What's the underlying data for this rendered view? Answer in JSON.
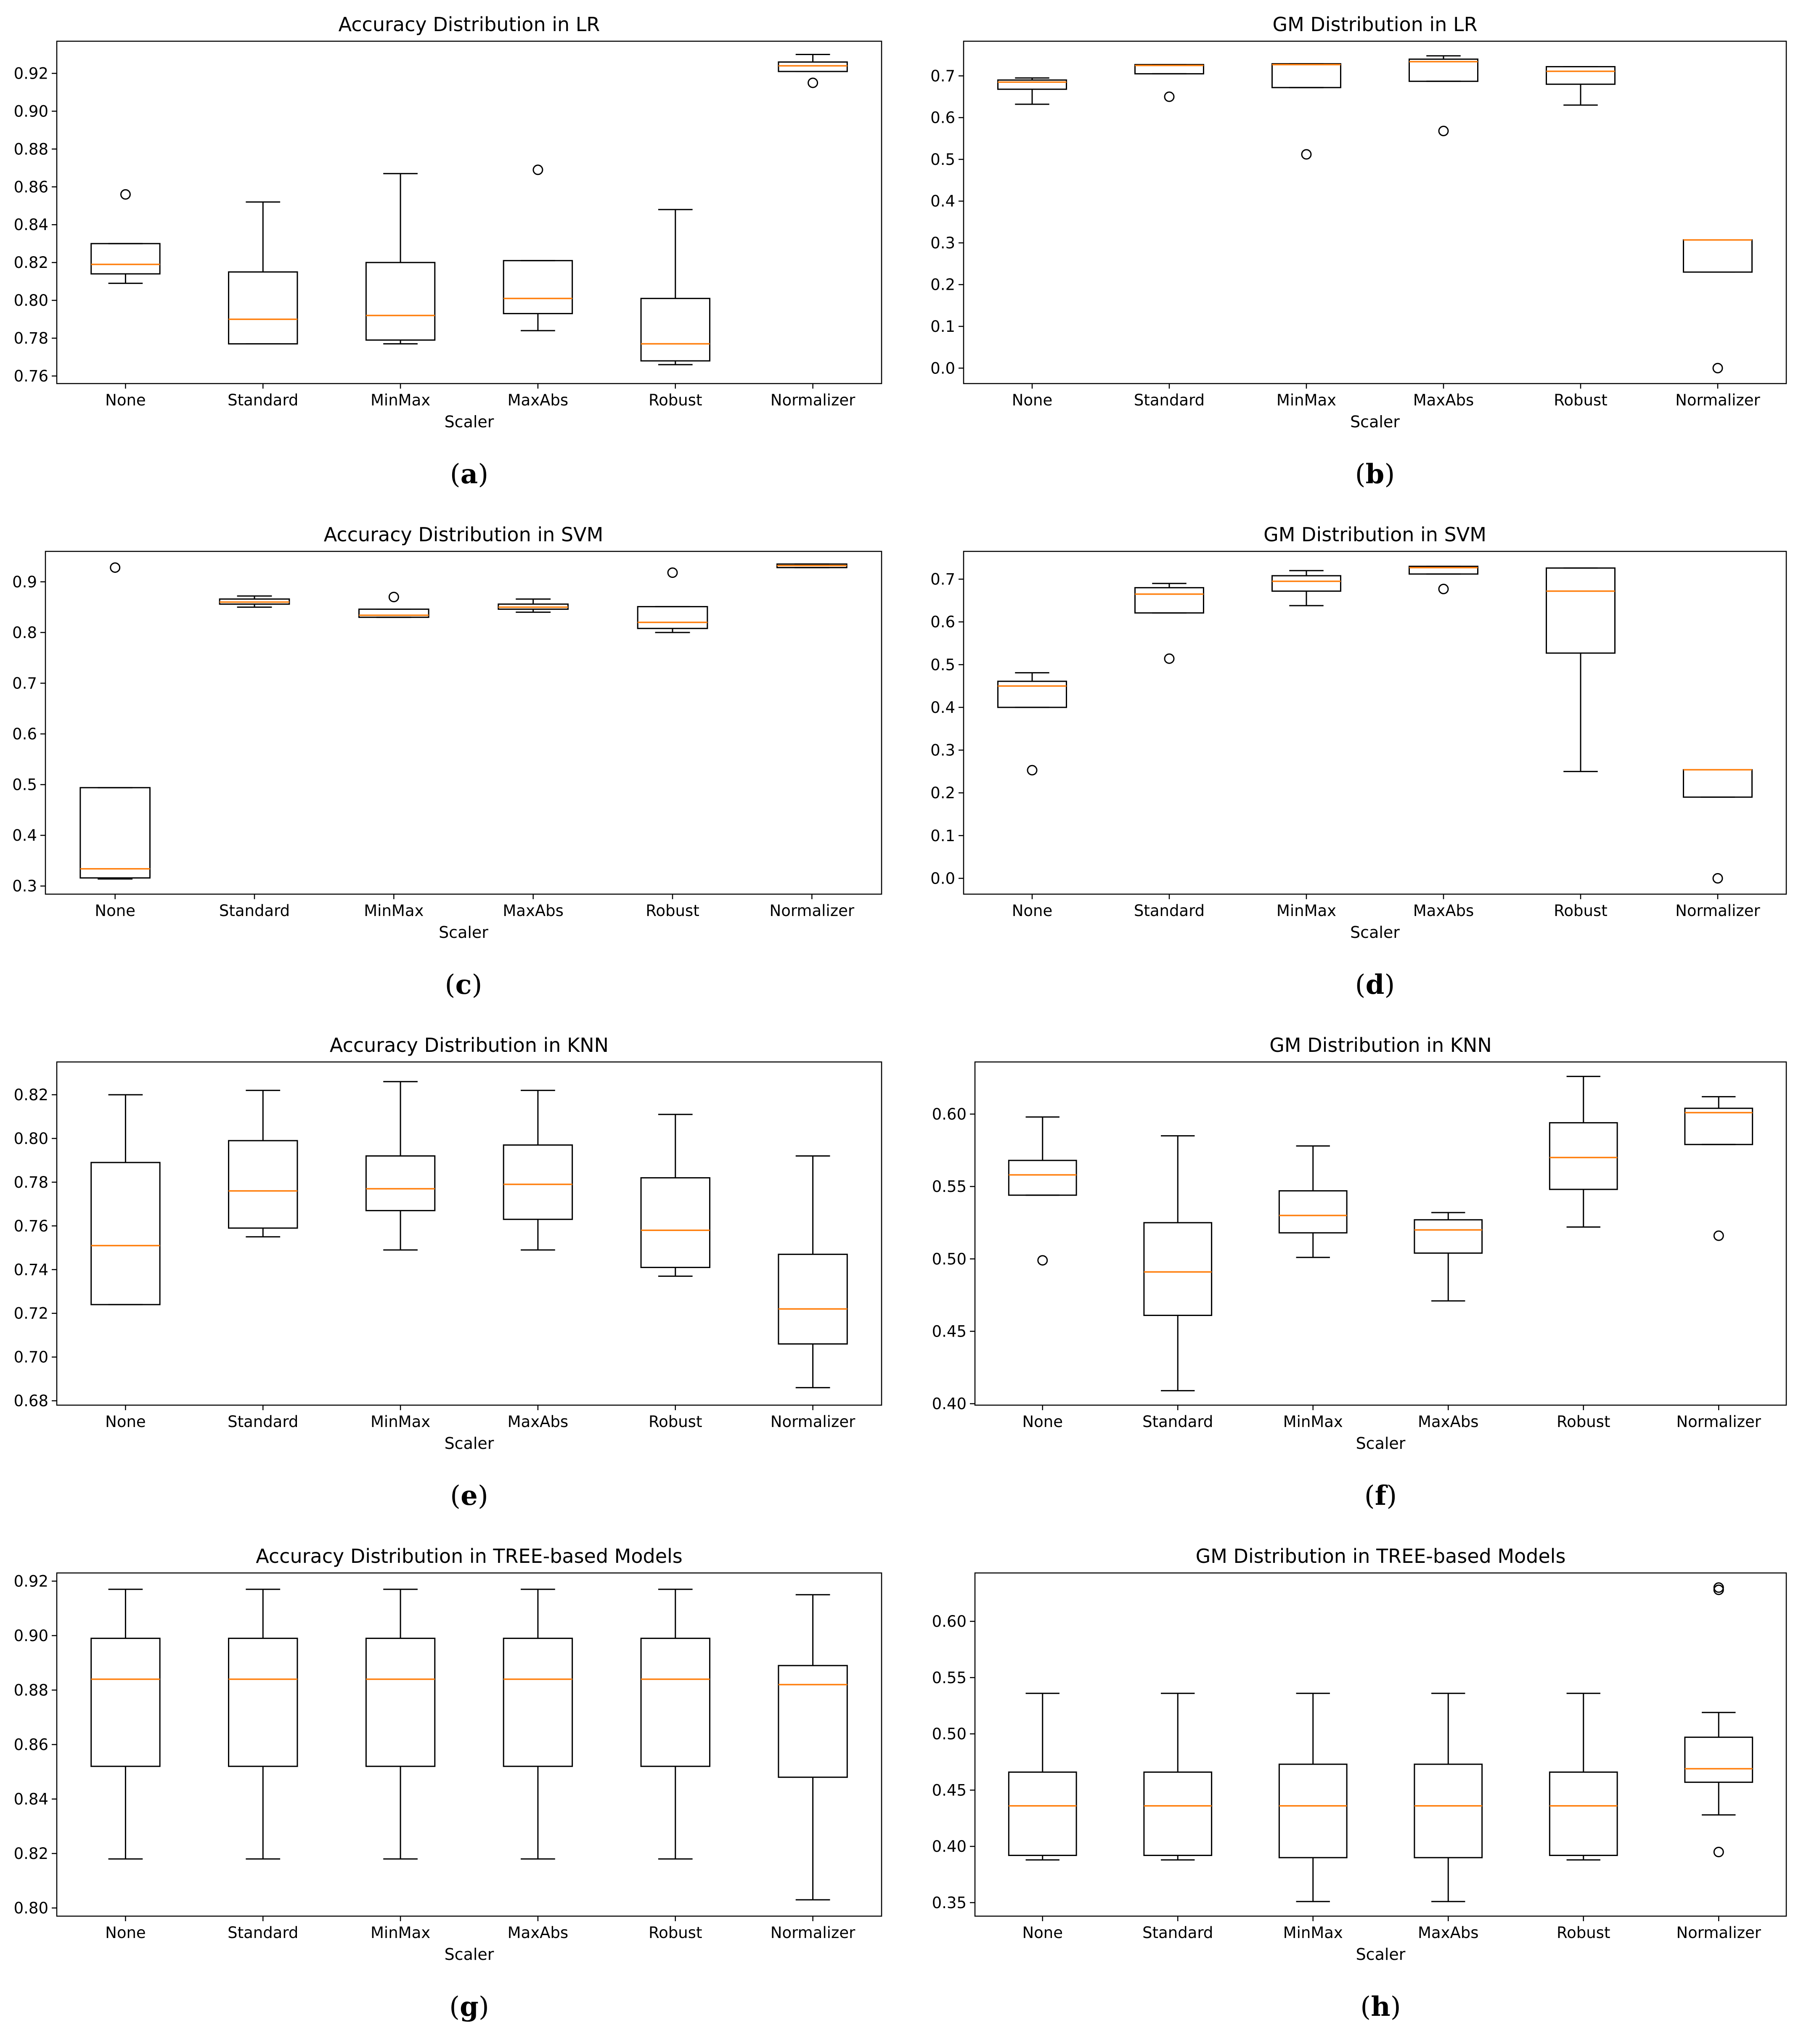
{
  "colors": {
    "box": "#000000",
    "median": "#ff7f0e",
    "background": "#ffffff"
  },
  "chart_data": [
    {
      "id": "a",
      "type": "boxplot",
      "caption": "a",
      "title": "Accuracy Distribution in LR",
      "xlabel": "Scaler",
      "ylabel": "",
      "ylim": [
        0.756,
        0.937
      ],
      "yticks": [
        0.76,
        0.78,
        0.8,
        0.82,
        0.84,
        0.86,
        0.88,
        0.9,
        0.92
      ],
      "ytick_labels": [
        "0.76",
        "0.78",
        "0.80",
        "0.82",
        "0.84",
        "0.86",
        "0.88",
        "0.90",
        "0.92"
      ],
      "categories": [
        "None",
        "Standard",
        "MinMax",
        "MaxAbs",
        "Robust",
        "Normalizer"
      ],
      "boxes": [
        {
          "whislo": 0.809,
          "q1": 0.814,
          "med": 0.819,
          "q3": 0.83,
          "whishi": 0.83,
          "fliers": [
            0.856
          ]
        },
        {
          "whislo": 0.777,
          "q1": 0.777,
          "med": 0.79,
          "q3": 0.815,
          "whishi": 0.852,
          "fliers": []
        },
        {
          "whislo": 0.777,
          "q1": 0.779,
          "med": 0.792,
          "q3": 0.82,
          "whishi": 0.867,
          "fliers": []
        },
        {
          "whislo": 0.784,
          "q1": 0.793,
          "med": 0.801,
          "q3": 0.821,
          "whishi": 0.821,
          "fliers": [
            0.869
          ]
        },
        {
          "whislo": 0.766,
          "q1": 0.768,
          "med": 0.777,
          "q3": 0.801,
          "whishi": 0.848,
          "fliers": []
        },
        {
          "whislo": 0.921,
          "q1": 0.921,
          "med": 0.924,
          "q3": 0.926,
          "whishi": 0.93,
          "fliers": [
            0.915
          ]
        }
      ]
    },
    {
      "id": "b",
      "type": "boxplot",
      "caption": "b",
      "title": "GM Distribution in LR",
      "xlabel": "Scaler",
      "ylabel": "",
      "ylim": [
        -0.037,
        0.783
      ],
      "yticks": [
        0.0,
        0.1,
        0.2,
        0.3,
        0.4,
        0.5,
        0.6,
        0.7
      ],
      "ytick_labels": [
        "0.0",
        "0.1",
        "0.2",
        "0.3",
        "0.4",
        "0.5",
        "0.6",
        "0.7"
      ],
      "categories": [
        "None",
        "Standard",
        "MinMax",
        "MaxAbs",
        "Robust",
        "Normalizer"
      ],
      "boxes": [
        {
          "whislo": 0.632,
          "q1": 0.668,
          "med": 0.685,
          "q3": 0.69,
          "whishi": 0.695,
          "fliers": []
        },
        {
          "whislo": 0.705,
          "q1": 0.705,
          "med": 0.725,
          "q3": 0.727,
          "whishi": 0.727,
          "fliers": [
            0.65
          ]
        },
        {
          "whislo": 0.672,
          "q1": 0.672,
          "med": 0.727,
          "q3": 0.729,
          "whishi": 0.729,
          "fliers": [
            0.512
          ]
        },
        {
          "whislo": 0.687,
          "q1": 0.687,
          "med": 0.734,
          "q3": 0.74,
          "whishi": 0.748,
          "fliers": [
            0.568
          ]
        },
        {
          "whislo": 0.63,
          "q1": 0.68,
          "med": 0.711,
          "q3": 0.722,
          "whishi": 0.722,
          "fliers": []
        },
        {
          "whislo": 0.23,
          "q1": 0.23,
          "med": 0.307,
          "q3": 0.307,
          "whishi": 0.307,
          "fliers": [
            0.0
          ]
        }
      ]
    },
    {
      "id": "c",
      "type": "boxplot",
      "caption": "c",
      "title": "Accuracy Distribution in SVM",
      "xlabel": "Scaler",
      "ylabel": "",
      "ylim": [
        0.284,
        0.96
      ],
      "yticks": [
        0.3,
        0.4,
        0.5,
        0.6,
        0.7,
        0.8,
        0.9
      ],
      "ytick_labels": [
        "0.3",
        "0.4",
        "0.5",
        "0.6",
        "0.7",
        "0.8",
        "0.9"
      ],
      "categories": [
        "None",
        "Standard",
        "MinMax",
        "MaxAbs",
        "Robust",
        "Normalizer"
      ],
      "boxes": [
        {
          "whislo": 0.314,
          "q1": 0.316,
          "med": 0.334,
          "q3": 0.494,
          "whishi": 0.494,
          "fliers": [
            0.928
          ]
        },
        {
          "whislo": 0.85,
          "q1": 0.856,
          "med": 0.86,
          "q3": 0.866,
          "whishi": 0.872,
          "fliers": []
        },
        {
          "whislo": 0.83,
          "q1": 0.83,
          "med": 0.834,
          "q3": 0.846,
          "whishi": 0.846,
          "fliers": [
            0.87
          ]
        },
        {
          "whislo": 0.84,
          "q1": 0.846,
          "med": 0.85,
          "q3": 0.856,
          "whishi": 0.866,
          "fliers": []
        },
        {
          "whislo": 0.8,
          "q1": 0.808,
          "med": 0.82,
          "q3": 0.851,
          "whishi": 0.851,
          "fliers": [
            0.918
          ]
        },
        {
          "whislo": 0.928,
          "q1": 0.928,
          "med": 0.932,
          "q3": 0.935,
          "whishi": 0.935,
          "fliers": []
        }
      ]
    },
    {
      "id": "d",
      "type": "boxplot",
      "caption": "d",
      "title": "GM Distribution in SVM",
      "xlabel": "Scaler",
      "ylabel": "",
      "ylim": [
        -0.037,
        0.765
      ],
      "yticks": [
        0.0,
        0.1,
        0.2,
        0.3,
        0.4,
        0.5,
        0.6,
        0.7
      ],
      "ytick_labels": [
        "0.0",
        "0.1",
        "0.2",
        "0.3",
        "0.4",
        "0.5",
        "0.6",
        "0.7"
      ],
      "categories": [
        "None",
        "Standard",
        "MinMax",
        "MaxAbs",
        "Robust",
        "Normalizer"
      ],
      "boxes": [
        {
          "whislo": 0.4,
          "q1": 0.4,
          "med": 0.45,
          "q3": 0.461,
          "whishi": 0.481,
          "fliers": [
            0.253
          ]
        },
        {
          "whislo": 0.621,
          "q1": 0.621,
          "med": 0.665,
          "q3": 0.68,
          "whishi": 0.69,
          "fliers": [
            0.514
          ]
        },
        {
          "whislo": 0.638,
          "q1": 0.672,
          "med": 0.695,
          "q3": 0.708,
          "whishi": 0.72,
          "fliers": []
        },
        {
          "whislo": 0.712,
          "q1": 0.712,
          "med": 0.727,
          "q3": 0.73,
          "whishi": 0.73,
          "fliers": [
            0.677
          ]
        },
        {
          "whislo": 0.25,
          "q1": 0.527,
          "med": 0.672,
          "q3": 0.726,
          "whishi": 0.726,
          "fliers": []
        },
        {
          "whislo": 0.19,
          "q1": 0.19,
          "med": 0.254,
          "q3": 0.254,
          "whishi": 0.254,
          "fliers": [
            0.0
          ]
        }
      ]
    },
    {
      "id": "e",
      "type": "boxplot",
      "caption": "e",
      "title": "Accuracy Distribution in KNN",
      "xlabel": "Scaler",
      "ylabel": "",
      "ylim": [
        0.678,
        0.835
      ],
      "yticks": [
        0.68,
        0.7,
        0.72,
        0.74,
        0.76,
        0.78,
        0.8,
        0.82
      ],
      "ytick_labels": [
        "0.68",
        "0.70",
        "0.72",
        "0.74",
        "0.76",
        "0.78",
        "0.80",
        "0.82"
      ],
      "categories": [
        "None",
        "Standard",
        "MinMax",
        "MaxAbs",
        "Robust",
        "Normalizer"
      ],
      "boxes": [
        {
          "whislo": 0.724,
          "q1": 0.724,
          "med": 0.751,
          "q3": 0.789,
          "whishi": 0.82,
          "fliers": []
        },
        {
          "whislo": 0.755,
          "q1": 0.759,
          "med": 0.776,
          "q3": 0.799,
          "whishi": 0.822,
          "fliers": []
        },
        {
          "whislo": 0.749,
          "q1": 0.767,
          "med": 0.777,
          "q3": 0.792,
          "whishi": 0.826,
          "fliers": []
        },
        {
          "whislo": 0.749,
          "q1": 0.763,
          "med": 0.779,
          "q3": 0.797,
          "whishi": 0.822,
          "fliers": []
        },
        {
          "whislo": 0.737,
          "q1": 0.741,
          "med": 0.758,
          "q3": 0.782,
          "whishi": 0.811,
          "fliers": []
        },
        {
          "whislo": 0.686,
          "q1": 0.706,
          "med": 0.722,
          "q3": 0.747,
          "whishi": 0.792,
          "fliers": []
        }
      ]
    },
    {
      "id": "f",
      "type": "boxplot",
      "caption": "f",
      "title": "GM Distribution in KNN",
      "xlabel": "Scaler",
      "ylabel": "",
      "ylim": [
        0.399,
        0.636
      ],
      "yticks": [
        0.4,
        0.45,
        0.5,
        0.55,
        0.6
      ],
      "ytick_labels": [
        "0.40",
        "0.45",
        "0.50",
        "0.55",
        "0.60"
      ],
      "categories": [
        "None",
        "Standard",
        "MinMax",
        "MaxAbs",
        "Robust",
        "Normalizer"
      ],
      "boxes": [
        {
          "whislo": 0.544,
          "q1": 0.544,
          "med": 0.558,
          "q3": 0.568,
          "whishi": 0.598,
          "fliers": [
            0.499
          ]
        },
        {
          "whislo": 0.409,
          "q1": 0.461,
          "med": 0.491,
          "q3": 0.525,
          "whishi": 0.585,
          "fliers": []
        },
        {
          "whislo": 0.501,
          "q1": 0.518,
          "med": 0.53,
          "q3": 0.547,
          "whishi": 0.578,
          "fliers": []
        },
        {
          "whislo": 0.471,
          "q1": 0.504,
          "med": 0.52,
          "q3": 0.527,
          "whishi": 0.532,
          "fliers": []
        },
        {
          "whislo": 0.522,
          "q1": 0.548,
          "med": 0.57,
          "q3": 0.594,
          "whishi": 0.626,
          "fliers": []
        },
        {
          "whislo": 0.579,
          "q1": 0.579,
          "med": 0.601,
          "q3": 0.604,
          "whishi": 0.612,
          "fliers": [
            0.516
          ]
        }
      ]
    },
    {
      "id": "g",
      "type": "boxplot",
      "caption": "g",
      "title": "Accuracy Distribution in TREE-based Models",
      "xlabel": "Scaler",
      "ylabel": "",
      "ylim": [
        0.797,
        0.923
      ],
      "yticks": [
        0.8,
        0.82,
        0.84,
        0.86,
        0.88,
        0.9,
        0.92
      ],
      "ytick_labels": [
        "0.80",
        "0.82",
        "0.84",
        "0.86",
        "0.88",
        "0.90",
        "0.92"
      ],
      "categories": [
        "None",
        "Standard",
        "MinMax",
        "MaxAbs",
        "Robust",
        "Normalizer"
      ],
      "boxes": [
        {
          "whislo": 0.818,
          "q1": 0.852,
          "med": 0.884,
          "q3": 0.899,
          "whishi": 0.917,
          "fliers": []
        },
        {
          "whislo": 0.818,
          "q1": 0.852,
          "med": 0.884,
          "q3": 0.899,
          "whishi": 0.917,
          "fliers": []
        },
        {
          "whislo": 0.818,
          "q1": 0.852,
          "med": 0.884,
          "q3": 0.899,
          "whishi": 0.917,
          "fliers": []
        },
        {
          "whislo": 0.818,
          "q1": 0.852,
          "med": 0.884,
          "q3": 0.899,
          "whishi": 0.917,
          "fliers": []
        },
        {
          "whislo": 0.818,
          "q1": 0.852,
          "med": 0.884,
          "q3": 0.899,
          "whishi": 0.917,
          "fliers": []
        },
        {
          "whislo": 0.803,
          "q1": 0.848,
          "med": 0.882,
          "q3": 0.889,
          "whishi": 0.915,
          "fliers": []
        }
      ]
    },
    {
      "id": "h",
      "type": "boxplot",
      "caption": "h",
      "title": "GM Distribution in TREE-based Models",
      "xlabel": "Scaler",
      "ylabel": "",
      "ylim": [
        0.338,
        0.643
      ],
      "yticks": [
        0.35,
        0.4,
        0.45,
        0.5,
        0.55,
        0.6
      ],
      "ytick_labels": [
        "0.35",
        "0.40",
        "0.45",
        "0.50",
        "0.55",
        "0.60"
      ],
      "categories": [
        "None",
        "Standard",
        "MinMax",
        "MaxAbs",
        "Robust",
        "Normalizer"
      ],
      "boxes": [
        {
          "whislo": 0.388,
          "q1": 0.392,
          "med": 0.436,
          "q3": 0.466,
          "whishi": 0.536,
          "fliers": []
        },
        {
          "whislo": 0.388,
          "q1": 0.392,
          "med": 0.436,
          "q3": 0.466,
          "whishi": 0.536,
          "fliers": []
        },
        {
          "whislo": 0.351,
          "q1": 0.39,
          "med": 0.436,
          "q3": 0.473,
          "whishi": 0.536,
          "fliers": []
        },
        {
          "whislo": 0.351,
          "q1": 0.39,
          "med": 0.436,
          "q3": 0.473,
          "whishi": 0.536,
          "fliers": []
        },
        {
          "whislo": 0.388,
          "q1": 0.392,
          "med": 0.436,
          "q3": 0.466,
          "whishi": 0.536,
          "fliers": []
        },
        {
          "whislo": 0.428,
          "q1": 0.457,
          "med": 0.469,
          "q3": 0.497,
          "whishi": 0.519,
          "fliers": [
            0.395,
            0.628,
            0.63
          ]
        }
      ]
    }
  ]
}
